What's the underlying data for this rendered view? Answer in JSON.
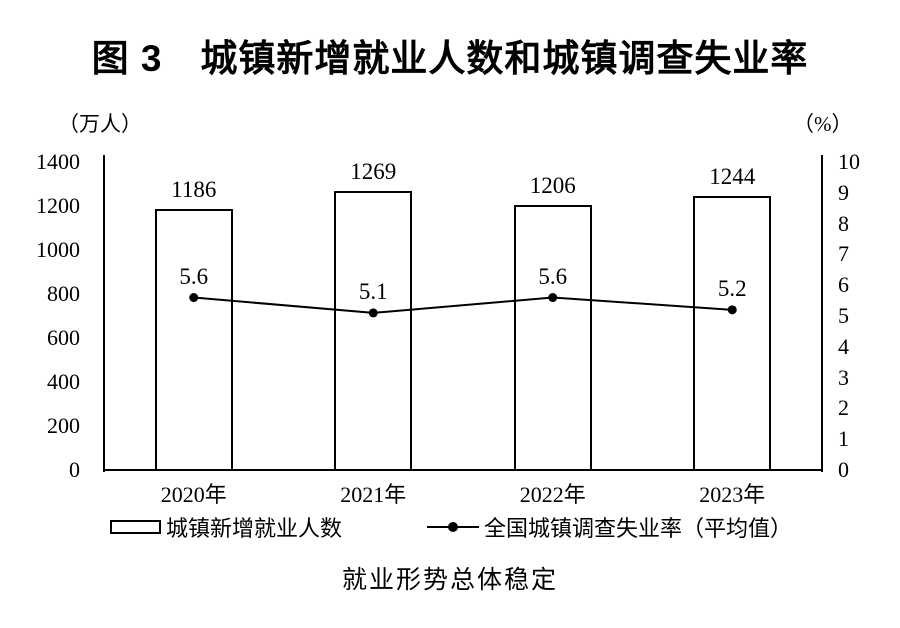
{
  "title": "图 3　城镇新增就业人数和城镇调查失业率",
  "caption": "就业形势总体稳定",
  "colors": {
    "ink": "#000000",
    "background": "#ffffff"
  },
  "legend": {
    "bar_label": "城镇新增就业人数",
    "line_label": "全国城镇调查失业率（平均值）",
    "bar_swatch_icon": "rect-outline",
    "line_swatch_icon": "line-with-dot"
  },
  "chart_data": {
    "type": "bar",
    "subtype": "bar+line dual-axis",
    "title": "图 3　城镇新增就业人数和城镇调查失业率",
    "categories": [
      "2020年",
      "2021年",
      "2022年",
      "2023年"
    ],
    "series": [
      {
        "name": "城镇新增就业人数",
        "type": "bar",
        "axis": "left",
        "values": [
          1186,
          1269,
          1206,
          1244
        ],
        "labels": [
          "1186",
          "1269",
          "1206",
          "1244"
        ]
      },
      {
        "name": "全国城镇调查失业率（平均值）",
        "type": "line",
        "axis": "right",
        "values": [
          5.6,
          5.1,
          5.6,
          5.2
        ],
        "labels": [
          "5.6",
          "5.1",
          "5.6",
          "5.2"
        ]
      }
    ],
    "left_axis": {
      "label": "（万人）",
      "min": 0,
      "max": 1400,
      "step": 200
    },
    "right_axis": {
      "label": "（%）",
      "min": 0,
      "max": 10,
      "step": 1
    },
    "grid": false,
    "legend_position": "bottom",
    "bar_fill": "#ffffff",
    "stroke": "#000000"
  }
}
